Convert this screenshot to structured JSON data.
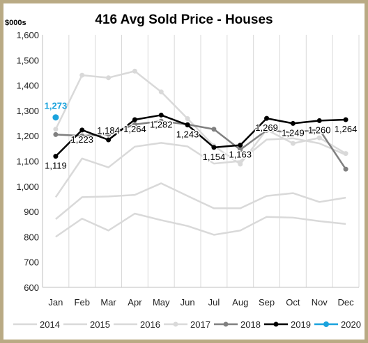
{
  "chart_data": {
    "type": "line",
    "title": "416 Avg Sold Price - Houses",
    "ylabel": "$000s",
    "xlabel": "",
    "ylim": [
      600,
      1600
    ],
    "ytick_labels": [
      "600",
      "700",
      "800",
      "900",
      "1,000",
      "1,100",
      "1,200",
      "1,300",
      "1,400",
      "1,500",
      "1,600"
    ],
    "yticks": [
      600,
      700,
      800,
      900,
      1000,
      1100,
      1200,
      1300,
      1400,
      1500,
      1600
    ],
    "categories": [
      "Jan",
      "Feb",
      "Mar",
      "Apr",
      "May",
      "Jun",
      "Jul",
      "Aug",
      "Sep",
      "Oct",
      "Nov",
      "Dec"
    ],
    "grid": "vertical",
    "legend_position": "bottom",
    "series": [
      {
        "name": "2014",
        "color": "#d9d9d9",
        "marker": false,
        "values": [
          800,
          872,
          825,
          892,
          866,
          843,
          808,
          825,
          879,
          876,
          862,
          851
        ]
      },
      {
        "name": "2015",
        "color": "#d9d9d9",
        "marker": false,
        "values": [
          870,
          957,
          960,
          966,
          1012,
          962,
          913,
          913,
          962,
          973,
          938,
          955
        ]
      },
      {
        "name": "2016",
        "color": "#d9d9d9",
        "marker": false,
        "values": [
          957,
          1110,
          1075,
          1157,
          1172,
          1158,
          1090,
          1100,
          1185,
          1190,
          1170,
          1125
        ]
      },
      {
        "name": "2017",
        "color": "#d9d9d9",
        "marker": true,
        "values": [
          1226,
          1440,
          1430,
          1456,
          1374,
          1268,
          1160,
          1088,
          1224,
          1170,
          1192,
          1130
        ]
      },
      {
        "name": "2018",
        "color": "#808080",
        "marker": true,
        "values": [
          1205,
          1200,
          1206,
          1245,
          1258,
          1245,
          1226,
          1145,
          1222,
          1213,
          1225,
          1068
        ]
      },
      {
        "name": "2019",
        "color": "#000000",
        "marker": true,
        "values": [
          1119,
          1223,
          1184,
          1264,
          1282,
          1243,
          1154,
          1163,
          1269,
          1249,
          1260,
          1264
        ],
        "data_labels": [
          "1,119",
          "1,223",
          "1,184",
          "1,264",
          "1,282",
          "1,243",
          "1,154",
          "1,163",
          "1,269",
          "1,249",
          "1,260",
          "1,264"
        ]
      },
      {
        "name": "2020",
        "color": "#1aa3dd",
        "marker": true,
        "values": [
          1273,
          null,
          null,
          null,
          null,
          null,
          null,
          null,
          null,
          null,
          null,
          null
        ],
        "data_labels": [
          "1,273"
        ]
      }
    ]
  }
}
